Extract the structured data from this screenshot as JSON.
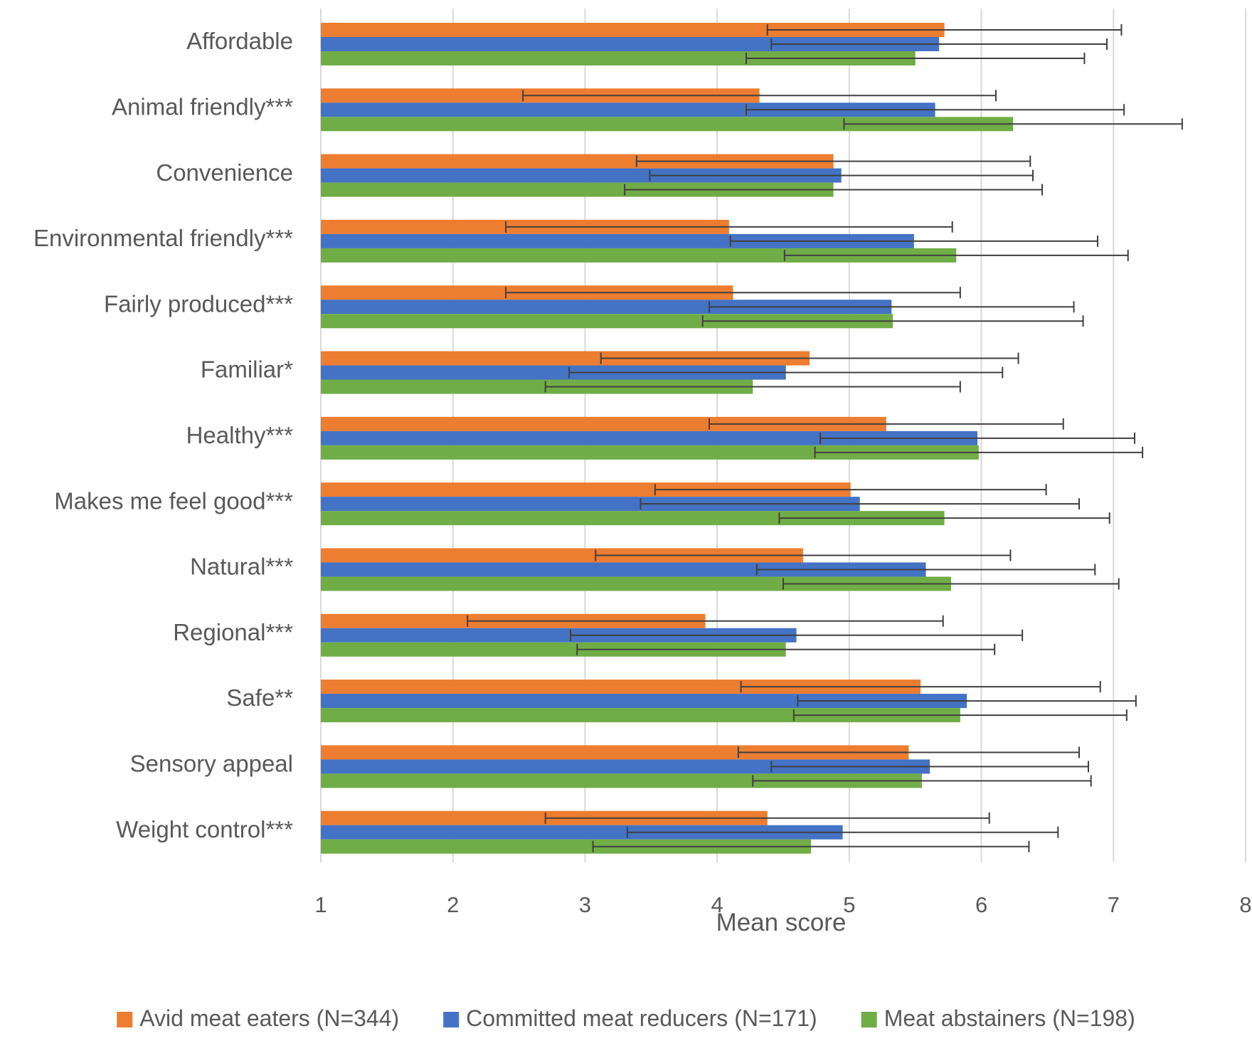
{
  "chart_data": {
    "type": "bar",
    "orientation": "horizontal",
    "title": "",
    "xlabel": "Mean score",
    "ylabel": "",
    "xlim": [
      1,
      8
    ],
    "xticks": [
      1,
      2,
      3,
      4,
      5,
      6,
      7,
      8
    ],
    "grid": "vertical",
    "legend_position": "bottom",
    "categories": [
      "Affordable",
      "Animal friendly***",
      "Convenience",
      "Environmental friendly***",
      "Fairly produced***",
      "Familiar*",
      "Healthy***",
      "Makes me feel good***",
      "Natural***",
      "Regional***",
      "Safe**",
      "Sensory appeal",
      "Weight control***"
    ],
    "series": [
      {
        "name": "Avid meat eaters (N=344)",
        "color": "#ED7D31",
        "values": [
          5.72,
          4.32,
          4.88,
          4.09,
          4.12,
          4.7,
          5.28,
          5.01,
          4.65,
          3.91,
          5.54,
          5.45,
          4.38
        ],
        "error": [
          1.34,
          1.79,
          1.49,
          1.69,
          1.72,
          1.58,
          1.34,
          1.48,
          1.57,
          1.8,
          1.36,
          1.29,
          1.68
        ]
      },
      {
        "name": "Committed meat reducers (N=171)",
        "color": "#4472C4",
        "values": [
          5.68,
          5.65,
          4.94,
          5.49,
          5.32,
          4.52,
          5.97,
          5.08,
          5.58,
          4.6,
          5.89,
          5.61,
          4.95
        ],
        "error": [
          1.27,
          1.43,
          1.45,
          1.39,
          1.38,
          1.64,
          1.19,
          1.66,
          1.28,
          1.71,
          1.28,
          1.2,
          1.63
        ]
      },
      {
        "name": "Meat abstainers (N=198)",
        "color": "#70AD47",
        "values": [
          5.5,
          6.24,
          4.88,
          5.81,
          5.33,
          4.27,
          5.98,
          5.72,
          5.77,
          4.52,
          5.84,
          5.55,
          4.71
        ],
        "error": [
          1.28,
          1.28,
          1.58,
          1.3,
          1.44,
          1.57,
          1.24,
          1.25,
          1.27,
          1.58,
          1.26,
          1.28,
          1.65
        ]
      }
    ]
  }
}
